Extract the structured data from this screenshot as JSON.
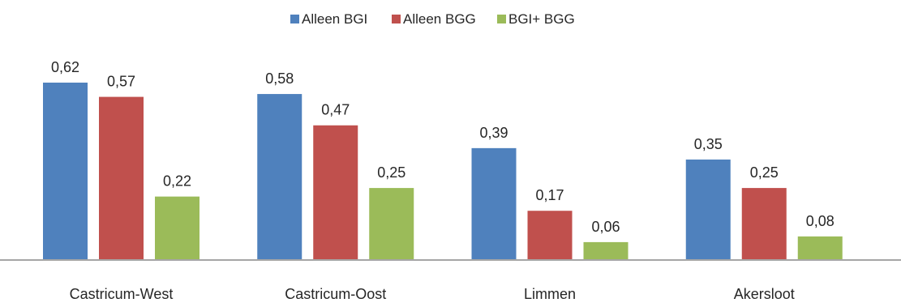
{
  "chart_data": {
    "type": "bar",
    "title": "",
    "xlabel": "",
    "ylabel": "",
    "categories": [
      "Castricum-West",
      "Castricum-Oost",
      "Limmen",
      "Akersloot"
    ],
    "series": [
      {
        "name": "Alleen BGI",
        "color": "#4f81bd",
        "values": [
          0.62,
          0.58,
          0.39,
          0.35
        ]
      },
      {
        "name": "Alleen BGG",
        "color": "#c0504d",
        "values": [
          0.57,
          0.47,
          0.17,
          0.25
        ]
      },
      {
        "name": "BGI+ BGG",
        "color": "#9bbb59",
        "values": [
          0.22,
          0.25,
          0.06,
          0.08
        ]
      }
    ],
    "value_labels": [
      [
        "0,62",
        "0,47",
        "0,39",
        "0,08"
      ],
      [
        "0,57",
        "0,25",
        "0,17",
        "0,25"
      ],
      [
        "0,22",
        "0,58",
        "0,06",
        "0,35"
      ]
    ],
    "value_labels_by_series": [
      [
        "0,62",
        "0,58",
        "0,39",
        "0,35"
      ],
      [
        "0,57",
        "0,47",
        "0,17",
        "0,25"
      ],
      [
        "0,22",
        "0,25",
        "0,06",
        "0,08"
      ]
    ],
    "ylim": [
      0,
      0.62
    ],
    "grid": false,
    "legend": "top-center",
    "axis_color": "#a6a6a6"
  }
}
